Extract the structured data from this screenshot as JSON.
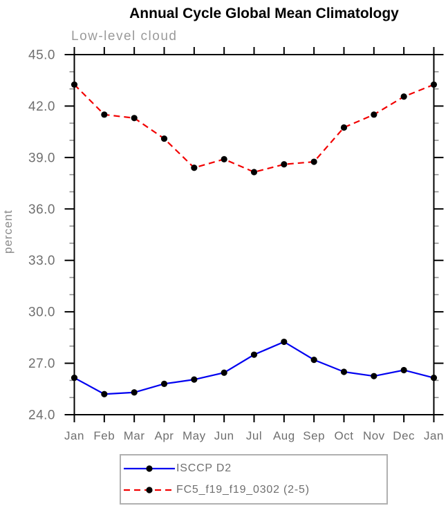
{
  "chart_data": {
    "type": "line",
    "title": "Annual Cycle Global Mean Climatology",
    "subtitle": "Low-level cloud",
    "ylabel": "percent",
    "xlabel": "",
    "x_labels": [
      "Jan",
      "Feb",
      "Mar",
      "Apr",
      "May",
      "Jun",
      "Jul",
      "Aug",
      "Sep",
      "Oct",
      "Nov",
      "Dec",
      "Jan"
    ],
    "ylim": [
      24.0,
      45.0
    ],
    "yticks": [
      24.0,
      27.0,
      30.0,
      33.0,
      36.0,
      39.0,
      42.0,
      45.0
    ],
    "minor_tick_step": 1.0,
    "grid": false,
    "legend_position": "bottom",
    "series": [
      {
        "name": "ISCCP D2",
        "color": "#0000f0",
        "line_style": "solid",
        "marker": "filled-circle",
        "marker_color": "#000000",
        "values": [
          26.15,
          25.2,
          25.3,
          25.8,
          26.05,
          26.45,
          27.5,
          28.25,
          27.2,
          26.5,
          26.25,
          26.6,
          26.15
        ]
      },
      {
        "name": "FC5_f19_f19_0302 (2-5)",
        "color": "#f20000",
        "line_style": "dashed",
        "marker": "filled-circle",
        "marker_color": "#000000",
        "values": [
          43.25,
          41.5,
          41.3,
          40.1,
          38.4,
          38.9,
          38.15,
          38.6,
          38.75,
          40.75,
          41.5,
          42.55,
          43.25
        ]
      }
    ],
    "colors": {
      "frame": "#000000",
      "major_tick": "#000000",
      "minor_tick": "#909090",
      "tick_label": "#6f6f6f",
      "month_label": "#6f6f6f"
    }
  }
}
